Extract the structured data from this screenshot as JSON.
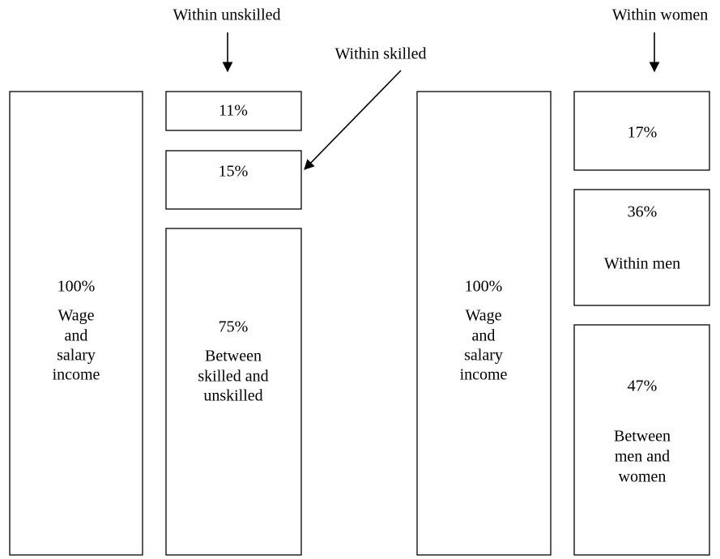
{
  "labels": [
    "Within unskilled",
    "Within skilled",
    "Within women"
  ],
  "boxes": [
    {
      "lines": [
        "100%",
        "Wage",
        "and",
        "salary",
        "income"
      ]
    },
    {
      "lines": [
        "11%"
      ]
    },
    {
      "lines": [
        "15%"
      ]
    },
    {
      "lines": [
        "75%",
        "Between",
        "skilled and",
        "unskilled"
      ]
    },
    {
      "lines": [
        "100%",
        "Wage",
        "and",
        "salary",
        "income"
      ]
    },
    {
      "lines": [
        "17%"
      ]
    },
    {
      "lines": [
        "36%",
        "Within men"
      ]
    },
    {
      "lines": [
        "47%",
        "Between",
        "men and",
        "women"
      ]
    }
  ]
}
